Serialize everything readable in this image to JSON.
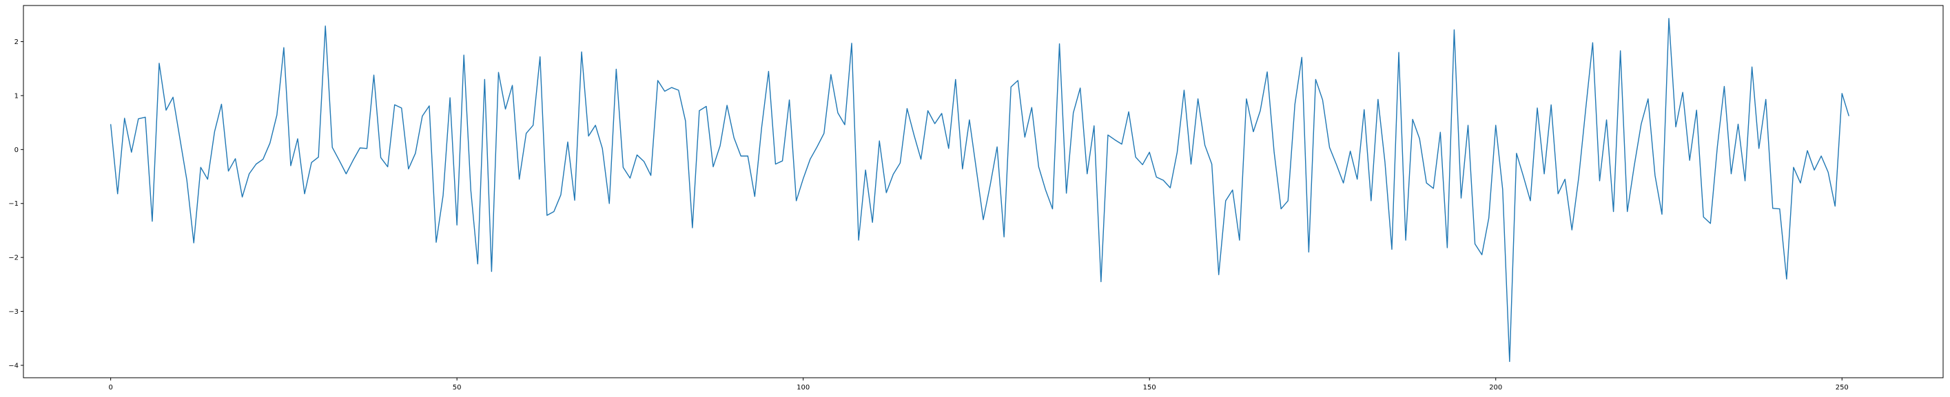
{
  "chart_data": {
    "type": "line",
    "title": "",
    "xlabel": "",
    "ylabel": "",
    "xlim": [
      -12.6,
      264.6
    ],
    "ylim": [
      -4.23,
      2.67
    ],
    "x_ticks": [
      0,
      50,
      100,
      150,
      200,
      250
    ],
    "x_tick_labels": [
      "0",
      "50",
      "100",
      "150",
      "200",
      "250"
    ],
    "y_ticks": [
      -4,
      -3,
      -2,
      -1,
      0,
      1,
      2
    ],
    "y_tick_labels": [
      "−4",
      "−3",
      "−2",
      "−1",
      "0",
      "1",
      "2"
    ],
    "grid": false,
    "legend": "none",
    "series": [
      {
        "color": "#1f77b4",
        "x": [
          0,
          1,
          2,
          3,
          4,
          5,
          6,
          7,
          8,
          9,
          10,
          11,
          12,
          13,
          14,
          15,
          16,
          17,
          18,
          19,
          20,
          21,
          22,
          23,
          24,
          25,
          26,
          27,
          28,
          29,
          30,
          31,
          32,
          33,
          34,
          35,
          36,
          37,
          38,
          39,
          40,
          41,
          42,
          43,
          44,
          45,
          46,
          47,
          48,
          49,
          50,
          51,
          52,
          53,
          54,
          55,
          56,
          57,
          58,
          59,
          60,
          61,
          62,
          63,
          64,
          65,
          66,
          67,
          68,
          69,
          70,
          71,
          72,
          73,
          74,
          75,
          76,
          77,
          78,
          79,
          80,
          81,
          82,
          83,
          84,
          85,
          86,
          87,
          88,
          89,
          90,
          91,
          92,
          93,
          94,
          95,
          96,
          97,
          98,
          99,
          100,
          101,
          102,
          103,
          104,
          105,
          106,
          107,
          108,
          109,
          110,
          111,
          112,
          113,
          114,
          115,
          116,
          117,
          118,
          119,
          120,
          121,
          122,
          123,
          124,
          125,
          126,
          127,
          128,
          129,
          130,
          131,
          132,
          133,
          134,
          135,
          136,
          137,
          138,
          139,
          140,
          141,
          142,
          143,
          144,
          145,
          146,
          147,
          148,
          149,
          150,
          151,
          152,
          153,
          154,
          155,
          156,
          157,
          158,
          159,
          160,
          161,
          162,
          163,
          164,
          165,
          166,
          167,
          168,
          169,
          170,
          171,
          172,
          173,
          174,
          175,
          176,
          177,
          178,
          179,
          180,
          181,
          182,
          183,
          184,
          185,
          186,
          187,
          188,
          189,
          190,
          191,
          192,
          193,
          194,
          195,
          196,
          197,
          198,
          199,
          200,
          201,
          202,
          203,
          204,
          205,
          206,
          207,
          208,
          209,
          210,
          211,
          212,
          213,
          214,
          215,
          216,
          217,
          218,
          219,
          220,
          221,
          222,
          223,
          224,
          225,
          226,
          227,
          228,
          229,
          230,
          231,
          232,
          233,
          234,
          235,
          236,
          237,
          238,
          239,
          240,
          241,
          242,
          243,
          244,
          245,
          246,
          247,
          248,
          249,
          250,
          251
        ],
        "y": [
          0.47,
          -0.82,
          0.58,
          -0.05,
          0.57,
          0.6,
          -1.33,
          1.6,
          0.73,
          0.97,
          0.2,
          -0.57,
          -1.73,
          -0.33,
          -0.55,
          0.33,
          0.84,
          -0.4,
          -0.17,
          -0.88,
          -0.45,
          -0.27,
          -0.18,
          0.12,
          0.64,
          1.89,
          -0.3,
          0.2,
          -0.82,
          -0.24,
          -0.14,
          2.29,
          0.04,
          -0.2,
          -0.45,
          -0.2,
          0.03,
          0.02,
          1.38,
          -0.15,
          -0.32,
          0.83,
          0.77,
          -0.36,
          -0.07,
          0.62,
          0.81,
          -1.72,
          -0.85,
          0.96,
          -1.4,
          1.75,
          -0.75,
          -2.12,
          1.3,
          -2.26,
          1.43,
          0.75,
          1.19,
          -0.55,
          0.3,
          0.45,
          1.72,
          -1.22,
          -1.15,
          -0.84,
          0.14,
          -0.94,
          1.81,
          0.25,
          0.45,
          0.02,
          -1.0,
          1.49,
          -0.33,
          -0.53,
          -0.1,
          -0.22,
          -0.48,
          1.28,
          1.08,
          1.15,
          1.1,
          0.53,
          -1.45,
          0.72,
          0.8,
          -0.32,
          0.07,
          0.82,
          0.22,
          -0.12,
          -0.12,
          -0.87,
          0.41,
          1.45,
          -0.27,
          -0.21,
          0.92,
          -0.95,
          -0.54,
          -0.18,
          0.05,
          0.3,
          1.39,
          0.68,
          0.46,
          1.97,
          -1.68,
          -0.38,
          -1.35,
          0.16,
          -0.8,
          -0.46,
          -0.25,
          0.76,
          0.27,
          -0.18,
          0.72,
          0.48,
          0.67,
          0.02,
          1.3,
          -0.36,
          0.55,
          -0.37,
          -1.3,
          -0.66,
          0.05,
          -1.62,
          1.16,
          1.28,
          0.23,
          0.78,
          -0.32,
          -0.75,
          -1.1,
          1.96,
          -0.81,
          0.68,
          1.14,
          -0.45,
          0.44,
          -2.45,
          0.27,
          0.18,
          0.1,
          0.7,
          -0.14,
          -0.28,
          -0.05,
          -0.51,
          -0.57,
          -0.71,
          -0.05,
          1.1,
          -0.27,
          0.94,
          0.08,
          -0.27,
          -2.32,
          -0.95,
          -0.75,
          -1.68,
          0.94,
          0.33,
          0.72,
          1.44,
          -0.05,
          -1.1,
          -0.95,
          0.84,
          1.71,
          -1.9,
          1.3,
          0.92,
          0.04,
          -0.28,
          -0.62,
          -0.03,
          -0.55,
          0.74,
          -0.95,
          0.93,
          -0.23,
          -1.85,
          1.8,
          -1.68,
          0.56,
          0.2,
          -0.62,
          -0.72,
          0.32,
          -1.82,
          2.22,
          -0.9,
          0.45,
          -1.75,
          -1.95,
          -1.27,
          0.45,
          -0.74,
          -3.93,
          -0.07,
          -0.5,
          -0.95,
          0.77,
          -0.45,
          0.83,
          -0.82,
          -0.55,
          -1.49,
          -0.5,
          0.76,
          1.98,
          -0.58,
          0.55,
          -1.15,
          1.83,
          -1.15,
          -0.3,
          0.47,
          0.94,
          -0.48,
          -1.2,
          2.43,
          0.42,
          1.06,
          -0.2,
          0.73,
          -1.25,
          -1.37,
          0.05,
          1.17,
          -0.45,
          0.47,
          -0.58,
          1.53,
          0.02,
          0.93,
          -1.09,
          -1.1,
          -2.4,
          -0.33,
          -0.62,
          -0.02,
          -0.38,
          -0.12,
          -0.42,
          -1.05,
          1.04,
          0.62
        ]
      }
    ]
  }
}
